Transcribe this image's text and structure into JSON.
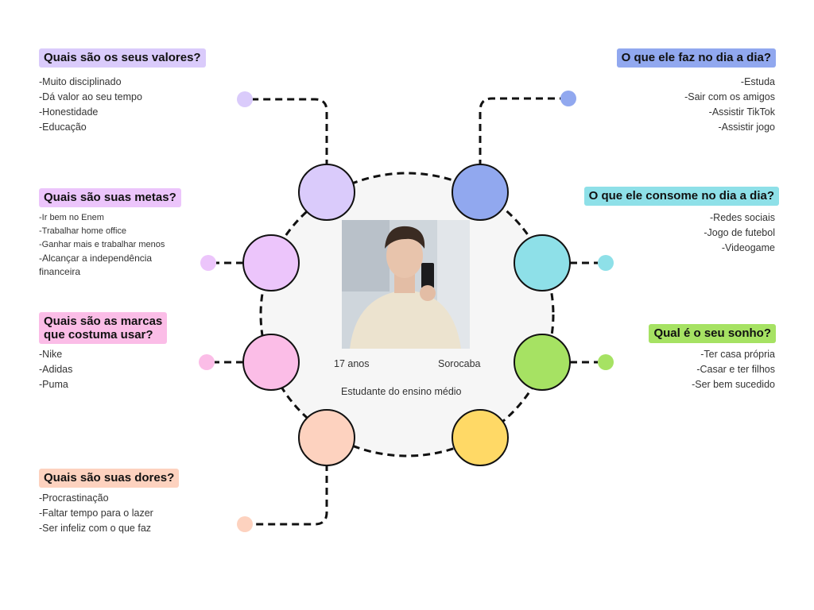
{
  "colors": {
    "valores": "#dacbfb",
    "dia": "#91a8ef",
    "metas": "#ecc5fb",
    "consome": "#8ee0e8",
    "marcas": "#fbbde7",
    "sonho": "#a6e263",
    "dores": "#fdd2bf",
    "yellow": "#ffd966",
    "circle_bg": "#f6f6f6"
  },
  "profile": {
    "age": "17 anos",
    "city": "Sorocaba",
    "occupation": "Estudante do ensino médio"
  },
  "sections": {
    "valores": {
      "title": "Quais são os seus valores?",
      "items": [
        "-Muito disciplinado",
        "-Dá valor ao seu tempo",
        "-Honestidade",
        "-Educação"
      ]
    },
    "metas": {
      "title": "Quais são suas metas?",
      "items": [
        "-Ir bem no Enem",
        "-Trabalhar home office",
        "-Ganhar mais e trabalhar menos",
        "-Alcançar a independência financeira"
      ]
    },
    "marcas": {
      "title_line1": "Quais são as marcas",
      "title_line2": "que costuma usar?",
      "items": [
        "-Nike",
        "-Adidas",
        "-Puma"
      ]
    },
    "dores": {
      "title": "Quais são suas dores?",
      "items": [
        "-Procrastinação",
        "-Faltar tempo para o lazer",
        "-Ser infeliz com o que faz"
      ]
    },
    "dia": {
      "title": "O que ele faz no dia a dia?",
      "items": [
        "-Estuda",
        "-Sair com os amigos",
        "-Assistir TikTok",
        "-Assistir jogo"
      ]
    },
    "consome": {
      "title": "O que ele consome no dia a dia?",
      "items": [
        "-Redes sociais",
        "-Jogo de futebol",
        "-Videogame"
      ]
    },
    "sonho": {
      "title": "Qual é o seu sonho?",
      "items": [
        "-Ter casa própria",
        "-Casar e ter filhos",
        "-Ser bem sucedido"
      ]
    }
  }
}
